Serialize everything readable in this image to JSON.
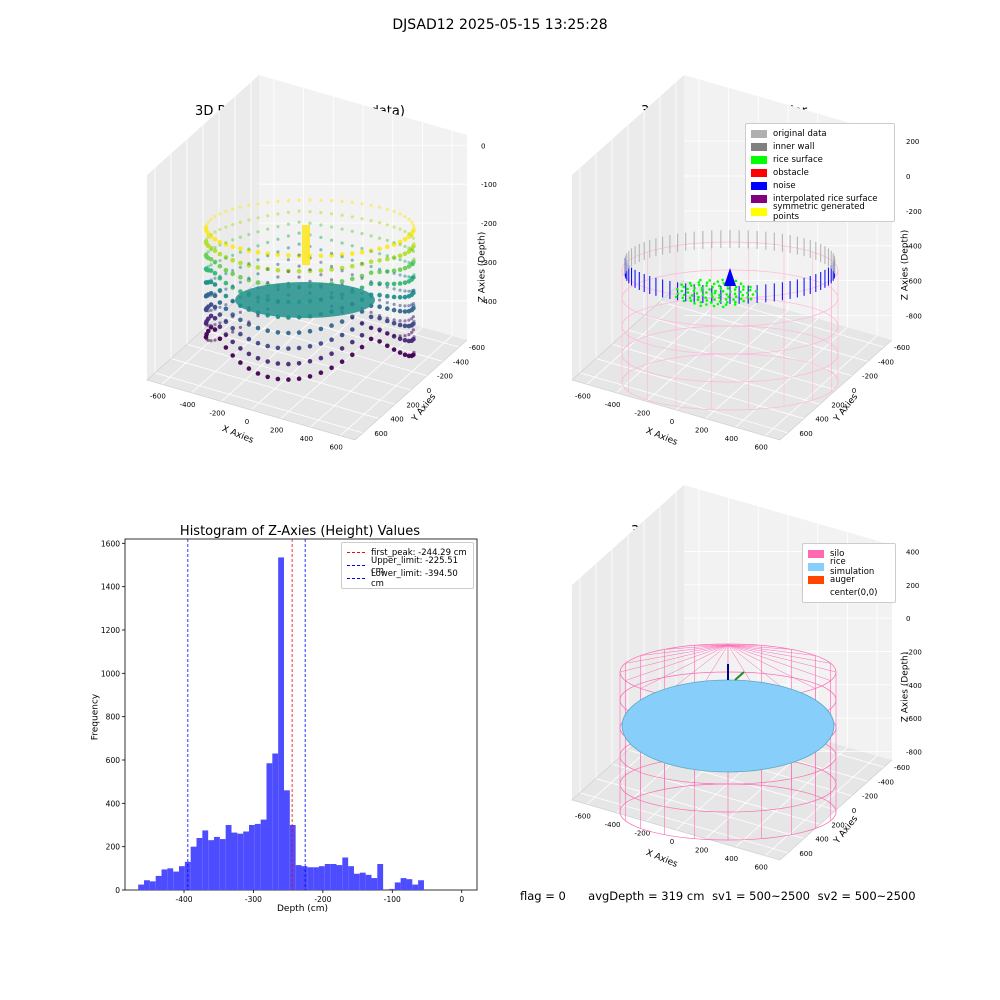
{
  "suptitle": "DJSAD12 2025-05-15 13:25:28",
  "status": {
    "flag": "flag = 0",
    "avg_depth": "avgDepth = 319 cm",
    "sv1": "sv1 = 500~2500",
    "sv2": "sv2 = 500~2500"
  },
  "colors": {
    "hist_bar": "#4d4dff",
    "first_peak": "#ff0000",
    "limit": "#0000ff",
    "viridis_low": "#440154",
    "viridis_mid": "#21918c",
    "viridis_high": "#fde725",
    "silo": "#ff69b4",
    "rice": "#87cefa",
    "auger": "#ff4500",
    "original": "#b0b0b0",
    "inner_wall": "#808080",
    "rice_surface": "#00ff00",
    "obstacle": "#ff0000",
    "noise": "#0000ff",
    "interpolated": "#800080",
    "symmetric": "#ffff00"
  },
  "chart_data": [
    {
      "type": "scatter",
      "title": "3D Plot of Silo Interior(row data)",
      "xlabel": "X Axies",
      "ylabel": "Y Axies",
      "zlabel": "Z Axies (Depth)",
      "xticks": [
        -600,
        -400,
        -200,
        0,
        200,
        400,
        600
      ],
      "yticks": [
        -600,
        -400,
        -200,
        0,
        200,
        400,
        600
      ],
      "zticks": [
        0,
        -100,
        -200,
        -300,
        -400
      ],
      "colormap": "viridis"
    },
    {
      "type": "scatter",
      "title": "3D classify of Silo Interior",
      "xlabel": "X Axies",
      "ylabel": "Y Axies",
      "zlabel": "Z Axies (Depth)",
      "xticks": [
        -600,
        -400,
        -200,
        0,
        200,
        400,
        600
      ],
      "yticks": [
        -600,
        -400,
        -200,
        0,
        200,
        400,
        600
      ],
      "zticks": [
        200,
        0,
        -200,
        -400,
        -600,
        -800
      ],
      "legend": [
        {
          "label": "original data",
          "color": "#b0b0b0"
        },
        {
          "label": "inner wall",
          "color": "#808080"
        },
        {
          "label": "rice surface",
          "color": "#00ff00"
        },
        {
          "label": "obstacle",
          "color": "#ff0000"
        },
        {
          "label": "noise",
          "color": "#0000ff"
        },
        {
          "label": "interpolated rice surface",
          "color": "#800080"
        },
        {
          "label": "symmetric generated points",
          "color": "#ffff00"
        }
      ],
      "legend_position": "top-right"
    },
    {
      "type": "bar",
      "title": "Histogram of Z-Axies (Height) Values",
      "xlabel": "Depth (cm)",
      "ylabel": "Frequency",
      "xlim": [
        -485,
        22
      ],
      "ylim": [
        0,
        1620
      ],
      "xticks": [
        -400,
        -300,
        -200,
        -100,
        0
      ],
      "yticks": [
        0,
        200,
        400,
        600,
        800,
        1000,
        1200,
        1400,
        1600
      ],
      "bin_width": 8.4,
      "bin_start": -466,
      "values": [
        25,
        45,
        40,
        65,
        95,
        100,
        85,
        110,
        130,
        200,
        240,
        275,
        230,
        245,
        235,
        300,
        265,
        260,
        270,
        300,
        305,
        325,
        585,
        630,
        1535,
        460,
        300,
        115,
        110,
        105,
        105,
        110,
        120,
        120,
        115,
        150,
        110,
        75,
        80,
        70,
        55,
        120,
        0,
        5,
        35,
        55,
        50,
        25,
        45
      ],
      "lines": [
        {
          "label": "first_peak: -244.29 cm",
          "x": -244.29,
          "color": "#ff0000"
        },
        {
          "label": "Upper_limit: -225.51 cm",
          "x": -225.51,
          "color": "#0000ff"
        },
        {
          "label": "Lower_limit: -394.50 cm",
          "x": -394.5,
          "color": "#0000ff"
        }
      ],
      "legend_position": "top-right"
    },
    {
      "type": "scatter",
      "title": "3D simulation of Silo Interior",
      "xlabel": "X Axies",
      "ylabel": "Y Axies",
      "zlabel": "Z Axies (Depth)",
      "xticks": [
        -600,
        -400,
        -200,
        0,
        200,
        400,
        600
      ],
      "yticks": [
        -600,
        -400,
        -200,
        0,
        200,
        400,
        600
      ],
      "zticks": [
        400,
        200,
        0,
        -200,
        -400,
        -600,
        -800
      ],
      "legend": [
        {
          "label": "silo",
          "color": "#ff69b4"
        },
        {
          "label": "rice simulation",
          "color": "#87cefa"
        },
        {
          "label": "auger",
          "color": "#ff4500"
        },
        {
          "label": "center(0,0)",
          "color": ""
        }
      ],
      "legend_position": "top-right"
    }
  ]
}
